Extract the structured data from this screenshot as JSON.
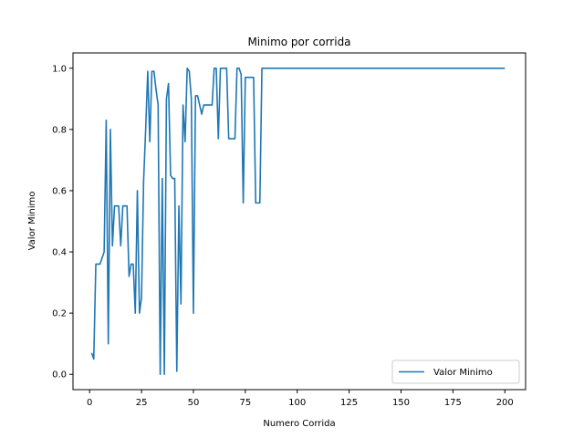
{
  "chart_data": {
    "type": "line",
    "title": "Minimo por corrida",
    "xlabel": "Numero Corrida",
    "ylabel": "Valor Minimo",
    "xlim": [
      -8,
      210
    ],
    "ylim": [
      -0.05,
      1.05
    ],
    "xticks": [
      0,
      25,
      50,
      75,
      100,
      125,
      150,
      175,
      200
    ],
    "yticks": [
      0.0,
      0.2,
      0.4,
      0.6,
      0.8,
      1.0
    ],
    "xtick_labels": [
      "0",
      "25",
      "50",
      "75",
      "100",
      "125",
      "150",
      "175",
      "200"
    ],
    "ytick_labels": [
      "0.0",
      "0.2",
      "0.4",
      "0.6",
      "0.8",
      "1.0"
    ],
    "grid": false,
    "legend_position": "lower-right",
    "series": [
      {
        "name": "Valor Minimo",
        "color": "#1f77b4",
        "x": [
          1,
          2,
          3,
          4,
          5,
          6,
          7,
          8,
          9,
          10,
          11,
          12,
          13,
          14,
          15,
          16,
          17,
          18,
          19,
          20,
          21,
          22,
          23,
          24,
          25,
          26,
          27,
          28,
          29,
          30,
          31,
          32,
          33,
          34,
          35,
          36,
          37,
          38,
          39,
          40,
          41,
          42,
          43,
          44,
          45,
          46,
          47,
          48,
          49,
          50,
          51,
          52,
          53,
          54,
          55,
          56,
          57,
          58,
          59,
          60,
          61,
          62,
          63,
          64,
          65,
          66,
          67,
          68,
          69,
          70,
          71,
          72,
          73,
          74,
          75,
          76,
          77,
          78,
          79,
          80,
          81,
          82,
          83,
          84,
          85,
          100,
          125,
          150,
          175,
          200
        ],
        "y": [
          0.07,
          0.05,
          0.36,
          0.36,
          0.36,
          0.38,
          0.4,
          0.83,
          0.1,
          0.8,
          0.42,
          0.55,
          0.55,
          0.55,
          0.42,
          0.55,
          0.55,
          0.55,
          0.32,
          0.36,
          0.36,
          0.2,
          0.6,
          0.2,
          0.25,
          0.63,
          0.8,
          0.99,
          0.76,
          0.99,
          0.99,
          0.93,
          0.88,
          0.0,
          0.64,
          0.0,
          0.9,
          0.95,
          0.65,
          0.64,
          0.64,
          0.01,
          0.55,
          0.23,
          0.88,
          0.76,
          1.0,
          0.99,
          0.9,
          0.2,
          0.91,
          0.91,
          0.88,
          0.85,
          0.88,
          0.88,
          0.88,
          0.88,
          0.88,
          1.0,
          1.0,
          0.77,
          1.0,
          1.0,
          1.0,
          1.0,
          0.77,
          0.77,
          0.77,
          0.77,
          1.0,
          1.0,
          0.98,
          0.56,
          0.97,
          0.97,
          0.97,
          0.97,
          0.97,
          0.56,
          0.56,
          0.56,
          1.0,
          1.0,
          1.0,
          1.0,
          1.0,
          1.0,
          1.0,
          1.0
        ]
      }
    ]
  }
}
